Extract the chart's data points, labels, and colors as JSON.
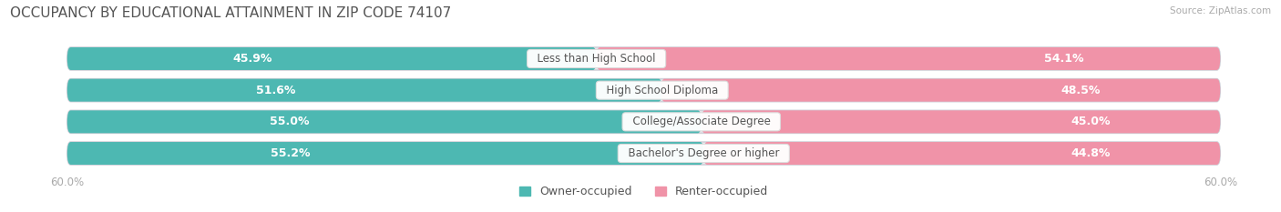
{
  "title": "OCCUPANCY BY EDUCATIONAL ATTAINMENT IN ZIP CODE 74107",
  "source": "Source: ZipAtlas.com",
  "categories": [
    "Less than High School",
    "High School Diploma",
    "College/Associate Degree",
    "Bachelor's Degree or higher"
  ],
  "owner_values": [
    45.9,
    51.6,
    55.0,
    55.2
  ],
  "renter_values": [
    54.1,
    48.5,
    45.0,
    44.8
  ],
  "owner_color": "#4db8b2",
  "renter_color": "#f093a8",
  "label_color": "#ffffff",
  "category_text_color": "#555555",
  "axis_label_color": "#aaaaaa",
  "background_color": "#ffffff",
  "bar_background_color": "#e8e8ec",
  "title_color": "#555555",
  "source_color": "#aaaaaa",
  "axis_limit": 60.0,
  "legend_owner": "Owner-occupied",
  "legend_renter": "Renter-occupied",
  "bar_height": 0.72,
  "title_fontsize": 11,
  "label_fontsize": 9,
  "category_fontsize": 8.5,
  "axis_fontsize": 8.5,
  "legend_fontsize": 9
}
